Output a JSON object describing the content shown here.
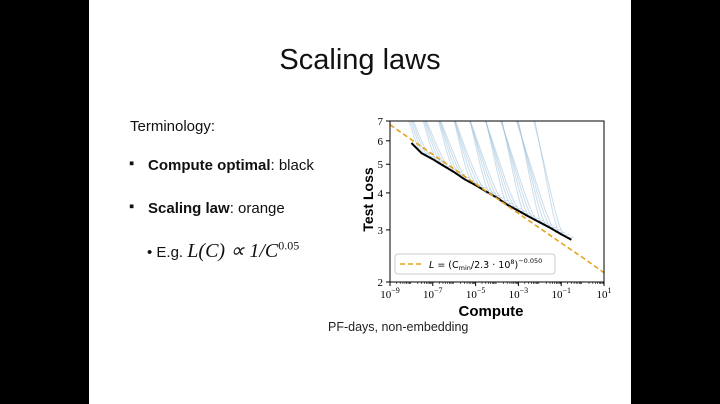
{
  "slide": {
    "title": "Scaling laws",
    "terminology": "Terminology:",
    "bullet1_bold": "Compute optimal",
    "bullet1_rest": ": black",
    "bullet2_bold": "Scaling law",
    "bullet2_rest": ": orange",
    "eg_prefix": "E.g.",
    "eg_formula": "L(C) ∝ 1/C",
    "eg_exponent": "0.05",
    "caption": "PF-days, non-embedding"
  },
  "chart_data": {
    "type": "line",
    "xlabel": "Compute",
    "ylabel": "Test Loss",
    "xscale": "log",
    "yscale": "log",
    "xlim": [
      1e-09,
      10
    ],
    "ylim": [
      2,
      7
    ],
    "xtick_labels": [
      "10−9",
      "10−7",
      "10−5",
      "10−3",
      "10−1",
      "101"
    ],
    "ytick_labels": [
      "2",
      "3",
      "4",
      "5",
      "6",
      "7"
    ],
    "legend": {
      "label": "L = (C_min/2.3 · 10^8)^−0.050",
      "location": "lower-left"
    },
    "colors": {
      "frontier": "#000000",
      "law": "#e6a31b",
      "runs": "#9ec1db"
    },
    "series": [
      {
        "name": "Compute optimal",
        "x": [
          1e-08,
          3e-08,
          1e-07,
          3e-07,
          1e-06,
          3e-06,
          1e-05,
          3e-05,
          0.0001,
          0.0003,
          0.001,
          0.003,
          0.01,
          0.03,
          0.1,
          0.3
        ],
        "y": [
          5.9,
          5.45,
          5.2,
          4.95,
          4.7,
          4.45,
          4.25,
          4.05,
          3.85,
          3.65,
          3.48,
          3.33,
          3.18,
          3.05,
          2.9,
          2.78
        ]
      },
      {
        "name": "Scaling law",
        "x": [
          1e-09,
          1e-08,
          1e-07,
          1e-06,
          1e-05,
          0.0001,
          0.001,
          0.01,
          0.1,
          1,
          10
        ],
        "y": [
          6.8,
          6.05,
          5.4,
          4.82,
          4.29,
          3.83,
          3.41,
          3.04,
          2.71,
          2.42,
          2.15
        ]
      }
    ]
  }
}
